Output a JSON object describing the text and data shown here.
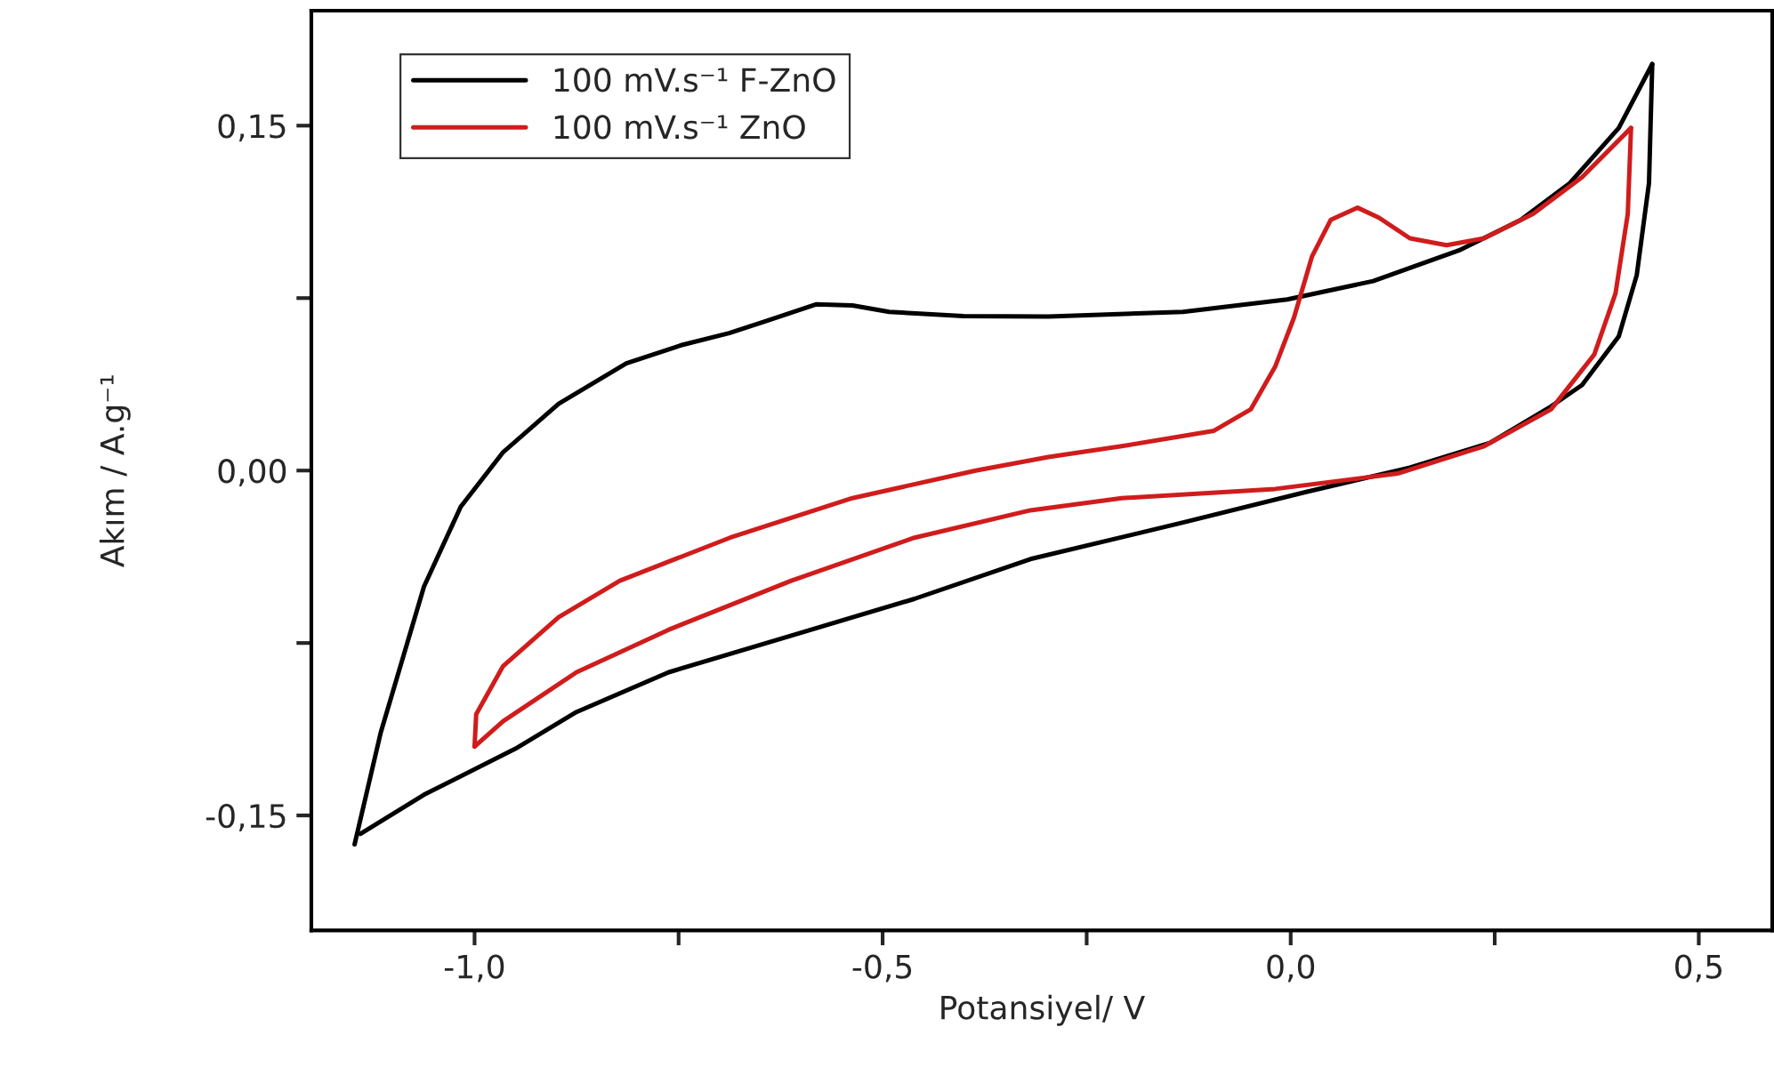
{
  "chart_data": {
    "type": "line",
    "xlabel": "Potansiyel/ V",
    "ylabel": "Akım / A.g⁻¹",
    "xlim": [
      -1.2,
      0.59
    ],
    "ylim": [
      -0.2,
      0.2
    ],
    "xticks": [
      {
        "value": -1.0,
        "label": "-1,0"
      },
      {
        "value": -0.75,
        "label": null
      },
      {
        "value": -0.5,
        "label": "-0,5"
      },
      {
        "value": -0.25,
        "label": null
      },
      {
        "value": 0.0,
        "label": "0,0"
      },
      {
        "value": 0.25,
        "label": null
      },
      {
        "value": 0.5,
        "label": "0,5"
      }
    ],
    "yticks": [
      {
        "value": -0.15,
        "label": "-0,15"
      },
      {
        "value": -0.075,
        "label": null
      },
      {
        "value": 0.0,
        "label": "0,00"
      },
      {
        "value": 0.075,
        "label": null
      },
      {
        "value": 0.15,
        "label": "0,15"
      }
    ],
    "grid": false,
    "legend": "top left",
    "line_style": "solid",
    "marker": "none",
    "series": [
      {
        "name": "100 mV.s⁻¹ F-ZnO",
        "color": "#000000",
        "x": [
          -1.147,
          -1.115,
          -1.062,
          -1.017,
          -0.965,
          -0.897,
          -0.814,
          -0.747,
          -0.688,
          -0.643,
          -0.581,
          -0.537,
          -0.492,
          -0.401,
          -0.297,
          -0.132,
          -0.004,
          0.101,
          0.206,
          0.282,
          0.342,
          0.402,
          0.443
        ],
        "values": [
          -0.1626,
          -0.114,
          -0.0505,
          -0.0158,
          0.008,
          0.029,
          0.0466,
          0.0545,
          0.0598,
          0.065,
          0.0723,
          0.0718,
          0.069,
          0.0672,
          0.067,
          0.069,
          0.0744,
          0.0824,
          0.0957,
          0.109,
          0.125,
          0.149,
          0.1768
        ]
      },
      {
        "color": "#000000",
        "x": [
          0.443,
          0.439,
          0.424,
          0.402,
          0.357,
          0.319,
          0.244,
          0.146,
          0.019,
          -0.132,
          -0.319,
          -0.461,
          -0.612,
          -0.762,
          -0.875,
          -0.95,
          -1.062,
          -1.14
        ],
        "values": [
          0.1768,
          0.125,
          0.085,
          0.0584,
          0.0372,
          0.0279,
          0.012,
          0.0013,
          -0.0093,
          -0.0226,
          -0.0385,
          -0.0558,
          -0.0718,
          -0.0877,
          -0.105,
          -0.121,
          -0.141,
          -0.158
        ]
      },
      {
        "name": "100 mV.s⁻¹ ZnO",
        "color": "#d01c1c",
        "x": [
          -1.0,
          -0.998,
          -0.965,
          -0.897,
          -0.822,
          -0.687,
          -0.537,
          -0.386,
          -0.297,
          -0.207,
          -0.094,
          -0.049,
          -0.019,
          0.004,
          0.026,
          0.049,
          0.082,
          0.108,
          0.146,
          0.191,
          0.237,
          0.297,
          0.357,
          0.417
        ],
        "values": [
          -0.12,
          -0.106,
          -0.085,
          -0.0638,
          -0.0479,
          -0.0292,
          -0.012,
          0.0,
          0.0059,
          0.0106,
          0.0173,
          0.0266,
          0.0452,
          0.0665,
          0.093,
          0.109,
          0.1143,
          0.11,
          0.101,
          0.098,
          0.101,
          0.1116,
          0.1276,
          0.149
        ]
      },
      {
        "color": "#d01c1c",
        "x": [
          0.417,
          0.413,
          0.398,
          0.372,
          0.319,
          0.237,
          0.131,
          -0.019,
          -0.207,
          -0.319,
          -0.461,
          -0.612,
          -0.762,
          -0.875,
          -0.965,
          -1.0
        ],
        "values": [
          0.149,
          0.1116,
          0.0771,
          0.0505,
          0.0266,
          0.0106,
          -0.0013,
          -0.008,
          -0.012,
          -0.0173,
          -0.0292,
          -0.0479,
          -0.0692,
          -0.0877,
          -0.109,
          -0.12
        ]
      }
    ]
  }
}
